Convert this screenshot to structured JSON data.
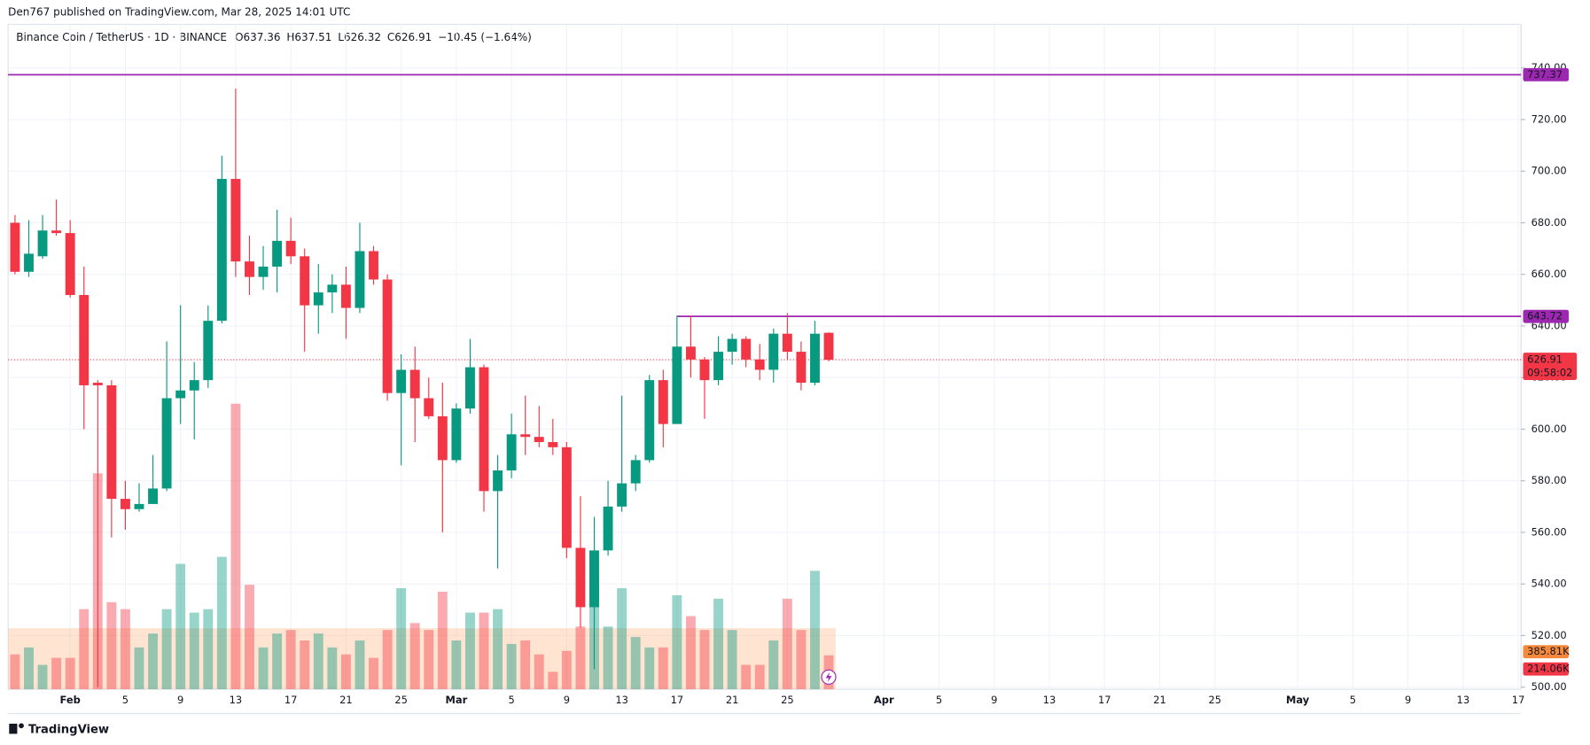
{
  "chart_data": {
    "type": "candlestick",
    "header": "Den767 published on TradingView.com, Mar 28, 2025 14:01 UTC",
    "symbol": "Binance Coin / TetherUS · 1D · BINANCE",
    "ohlc_letters": [
      "O",
      "H",
      "L",
      "C"
    ],
    "change_label": "−10.45 (−1.64%)",
    "brand": "TradingView",
    "up_color": "#089981",
    "down_color": "#f23645",
    "x": [
      0,
      1,
      2,
      3,
      4,
      5,
      6,
      7,
      8,
      9,
      10,
      11,
      12,
      13,
      14,
      15,
      16,
      17,
      18,
      19,
      20,
      21,
      22,
      23,
      24,
      25,
      26,
      27,
      28,
      29,
      30,
      31,
      32,
      33,
      34,
      35,
      36,
      37,
      38,
      39,
      40,
      41,
      42,
      43,
      44,
      45,
      46,
      47,
      48,
      49,
      50,
      51,
      52,
      53,
      54,
      55,
      56,
      57,
      58,
      59
    ],
    "open": [
      680,
      661,
      667,
      677,
      676,
      652,
      618,
      617,
      573,
      569,
      571,
      577,
      612,
      615,
      619,
      642,
      697,
      665,
      659,
      663,
      673,
      667,
      648,
      653,
      656,
      647,
      669,
      658,
      614,
      623,
      612,
      605,
      588,
      608,
      624,
      576,
      584,
      598,
      597,
      595,
      593,
      554,
      531,
      553,
      570,
      579,
      588,
      619,
      602,
      632,
      627,
      619,
      630,
      635,
      627,
      623,
      637,
      630,
      618,
      637.36
    ],
    "high": [
      683,
      681,
      683,
      689,
      681,
      663,
      619,
      619,
      580,
      579,
      590,
      634,
      648,
      626,
      648,
      706,
      732,
      675,
      671,
      685,
      682,
      670,
      664,
      660,
      663,
      680,
      671,
      660,
      629,
      632,
      620,
      618,
      610,
      635,
      625,
      590,
      606,
      613,
      609,
      604,
      595,
      574,
      566,
      580,
      613,
      590,
      621,
      623,
      644,
      644,
      628,
      636,
      637,
      636,
      633,
      639,
      645,
      634,
      642,
      637.51
    ],
    "low": [
      660,
      659,
      666,
      675,
      651,
      600,
      500,
      558,
      561,
      568,
      571,
      576,
      602,
      596,
      616,
      641,
      659,
      652,
      654,
      653,
      664,
      630,
      637,
      645,
      635,
      645,
      656,
      611,
      586,
      595,
      604,
      560,
      587,
      606,
      568,
      546,
      581,
      590,
      593,
      590,
      550,
      523,
      507,
      551,
      568,
      576,
      587,
      593,
      602,
      620,
      604,
      617,
      625,
      624,
      619,
      618,
      627,
      615,
      617,
      626.32
    ],
    "close": [
      661,
      668,
      677,
      676,
      652,
      617,
      617,
      573,
      569,
      571,
      577,
      612,
      615,
      619,
      642,
      697,
      665,
      659,
      663,
      673,
      667,
      648,
      653,
      656,
      647,
      669,
      658,
      614,
      623,
      612,
      605,
      588,
      608,
      624,
      576,
      584,
      598,
      597,
      595,
      593,
      554,
      531,
      553,
      570,
      579,
      588,
      619,
      602,
      632,
      627,
      619,
      630,
      635,
      627,
      623,
      637,
      630,
      618,
      637,
      626.91
    ],
    "volume": [
      220000,
      264000,
      154000,
      198000,
      198000,
      506000,
      1364000,
      550000,
      506000,
      264000,
      352000,
      506000,
      792000,
      484000,
      506000,
      836000,
      1804000,
      660000,
      264000,
      352000,
      374000,
      308000,
      352000,
      264000,
      220000,
      308000,
      198000,
      374000,
      638000,
      418000,
      374000,
      616000,
      308000,
      484000,
      484000,
      506000,
      286000,
      308000,
      220000,
      110000,
      242000,
      396000,
      704000,
      396000,
      638000,
      330000,
      264000,
      264000,
      594000,
      462000,
      374000,
      572000,
      374000,
      154000,
      154000,
      308000,
      572000,
      374000,
      748000,
      214060
    ],
    "volume_label": "214.06K",
    "volume_ma": {
      "value": 385810,
      "label": "385.81K"
    },
    "volume_scale_max": 4200000,
    "countdown": "09:58:02",
    "levels": [
      {
        "value": 737.37,
        "color": "#9c27b0",
        "start_x": -0.5
      },
      {
        "value": 643.72,
        "color": "#9c27b0",
        "start_x": 48
      }
    ],
    "xlim": [
      -0.5,
      109.2
    ],
    "ylim": [
      499.2,
      756.9
    ],
    "yticks": [
      {
        "value": 500,
        "label": "500.00"
      },
      {
        "value": 520,
        "label": "520.00"
      },
      {
        "value": 540,
        "label": "540.00"
      },
      {
        "value": 560,
        "label": "560.00"
      },
      {
        "value": 580,
        "label": "580.00"
      },
      {
        "value": 600,
        "label": "600.00"
      },
      {
        "value": 620,
        "label": "620.00"
      },
      {
        "value": 640,
        "label": "640.00"
      },
      {
        "value": 660,
        "label": "660.00"
      },
      {
        "value": 680,
        "label": "680.00"
      },
      {
        "value": 700,
        "label": "700.00"
      },
      {
        "value": 720,
        "label": "720.00"
      },
      {
        "value": 740,
        "label": "740.00"
      }
    ],
    "xticks": [
      {
        "value": 4,
        "label": "Feb"
      },
      {
        "value": 8,
        "label": "5"
      },
      {
        "value": 12,
        "label": "9"
      },
      {
        "value": 16,
        "label": "13"
      },
      {
        "value": 20,
        "label": "17"
      },
      {
        "value": 24,
        "label": "21"
      },
      {
        "value": 28,
        "label": "25"
      },
      {
        "value": 32,
        "label": "Mar"
      },
      {
        "value": 36,
        "label": "5"
      },
      {
        "value": 40,
        "label": "9"
      },
      {
        "value": 44,
        "label": "13"
      },
      {
        "value": 48,
        "label": "17"
      },
      {
        "value": 52,
        "label": "21"
      },
      {
        "value": 56,
        "label": "25"
      },
      {
        "value": 63,
        "label": "Apr"
      },
      {
        "value": 67,
        "label": "5"
      },
      {
        "value": 71,
        "label": "9"
      },
      {
        "value": 75,
        "label": "13"
      },
      {
        "value": 79,
        "label": "17"
      },
      {
        "value": 83,
        "label": "21"
      },
      {
        "value": 87,
        "label": "25"
      },
      {
        "value": 93,
        "label": "May"
      },
      {
        "value": 97,
        "label": "5"
      },
      {
        "value": 101,
        "label": "9"
      },
      {
        "value": 105,
        "label": "13"
      },
      {
        "value": 109,
        "label": "17"
      }
    ],
    "grid": true
  }
}
